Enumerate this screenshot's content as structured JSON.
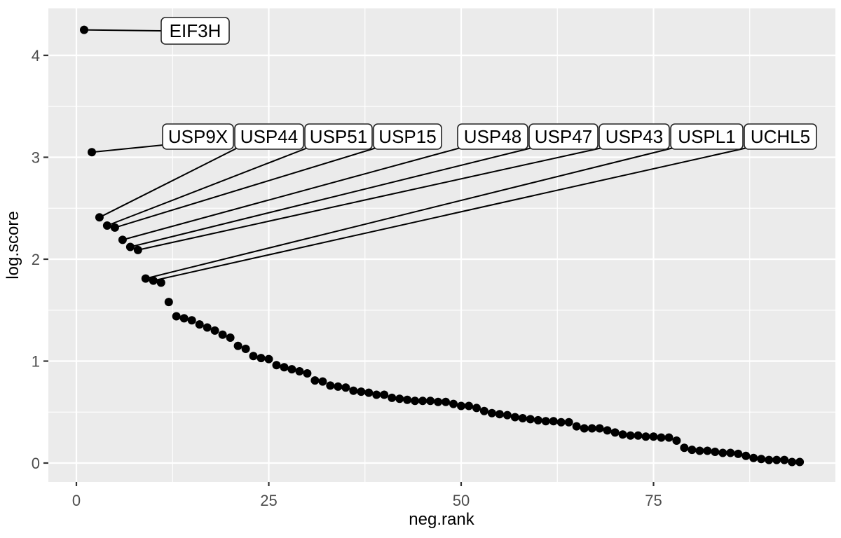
{
  "chart_data": {
    "type": "scatter",
    "title": "",
    "xlabel": "neg.rank",
    "ylabel": "log.score",
    "x_ticks": [
      0,
      25,
      50,
      75
    ],
    "y_ticks": [
      0,
      1,
      2,
      3,
      4
    ],
    "x_minor_ticks": [
      12.5,
      37.5,
      62.5,
      87.5
    ],
    "y_minor_ticks": [
      0.5,
      1.5,
      2.5,
      3.5
    ],
    "xlim": [
      -3.65,
      98.65
    ],
    "ylim": [
      -0.21,
      4.46
    ],
    "grid": true,
    "legend": "none",
    "panel_background_color": "#EBEBEB",
    "gridline_color": "#FFFFFF",
    "point_color": "#000000",
    "axis_text_color": "#4D4D4D",
    "tick_mark_color": "#333333",
    "label_box_fill": "#FFFFFF",
    "label_box_border": "#222222",
    "labeled_points": [
      {
        "label": "EIF3H",
        "rank": 1,
        "score": 4.25
      },
      {
        "label": "USP9X",
        "rank": 2,
        "score": 3.05
      },
      {
        "label": "USP44",
        "rank": 3,
        "score": 2.41
      },
      {
        "label": "USP51",
        "rank": 4,
        "score": 2.33
      },
      {
        "label": "USP15",
        "rank": 5,
        "score": 2.31
      },
      {
        "label": "USP48",
        "rank": 6,
        "score": 2.19
      },
      {
        "label": "USP47",
        "rank": 7,
        "score": 2.12
      },
      {
        "label": "USP43",
        "rank": 8,
        "score": 2.09
      },
      {
        "label": "USPL1",
        "rank": 9,
        "score": 1.81
      },
      {
        "label": "UCHL5",
        "rank": 10,
        "score": 1.79
      }
    ],
    "unlabeled_points": {
      "start_rank": 11,
      "scores": [
        1.77,
        1.58,
        1.44,
        1.42,
        1.4,
        1.36,
        1.33,
        1.3,
        1.26,
        1.23,
        1.15,
        1.12,
        1.05,
        1.03,
        1.02,
        0.96,
        0.94,
        0.92,
        0.9,
        0.88,
        0.81,
        0.8,
        0.76,
        0.75,
        0.74,
        0.71,
        0.7,
        0.69,
        0.67,
        0.67,
        0.64,
        0.63,
        0.62,
        0.61,
        0.61,
        0.61,
        0.6,
        0.6,
        0.58,
        0.56,
        0.56,
        0.54,
        0.51,
        0.49,
        0.48,
        0.47,
        0.45,
        0.44,
        0.43,
        0.42,
        0.41,
        0.41,
        0.4,
        0.4,
        0.36,
        0.34,
        0.34,
        0.34,
        0.32,
        0.3,
        0.28,
        0.27,
        0.27,
        0.26,
        0.26,
        0.25,
        0.25,
        0.22,
        0.15,
        0.13,
        0.12,
        0.12,
        0.11,
        0.1,
        0.1,
        0.09,
        0.07,
        0.05,
        0.04,
        0.03,
        0.03,
        0.03,
        0.01,
        0.01
      ]
    }
  }
}
